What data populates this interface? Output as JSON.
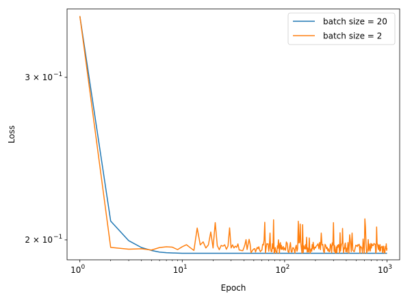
{
  "chart_data": {
    "type": "line",
    "title": "",
    "xlabel": "Epoch",
    "ylabel": "Loss",
    "xscale": "log",
    "yscale": "log",
    "xlim": [
      0.75,
      1330
    ],
    "ylim": [
      0.1903,
      0.3558
    ],
    "grid": false,
    "legend_position": "top-right",
    "x_ticks": [
      {
        "value": 1,
        "base": "10",
        "exp": "0"
      },
      {
        "value": 10,
        "base": "10",
        "exp": "1"
      },
      {
        "value": 100,
        "base": "10",
        "exp": "2"
      },
      {
        "value": 1000,
        "base": "10",
        "exp": "3"
      }
    ],
    "y_ticks": [
      {
        "value": 0.2,
        "mant": "2 × 10",
        "exp": "−1"
      },
      {
        "value": 0.3,
        "mant": "3 × 10",
        "exp": "−1"
      }
    ],
    "series": [
      {
        "name": "batch size = 20",
        "color": "#1f77b4",
        "noise": 0,
        "x": [
          1,
          2,
          3,
          4,
          5,
          6,
          7,
          8,
          9,
          10,
          15,
          20,
          30,
          50,
          100,
          200,
          500,
          1000
        ],
        "y": [
          0.3495,
          0.2096,
          0.1996,
          0.1962,
          0.1948,
          0.194,
          0.1937,
          0.1936,
          0.1935,
          0.1934,
          0.1934,
          0.1934,
          0.1934,
          0.1934,
          0.1934,
          0.1934,
          0.1934,
          0.1934
        ]
      },
      {
        "name": "batch size = 2",
        "color": "#ff7f0e",
        "noise": 0.006,
        "x": [
          1,
          2,
          3,
          4,
          5,
          6,
          7,
          8,
          9,
          10,
          11,
          12,
          13,
          14,
          15,
          16,
          17,
          18,
          19,
          20,
          30,
          50,
          100,
          200,
          400,
          1000
        ],
        "y": [
          0.3495,
          0.1963,
          0.1954,
          0.1956,
          0.195,
          0.1962,
          0.1966,
          0.1964,
          0.1952,
          0.1966,
          0.1976,
          0.1961,
          0.1948,
          0.206,
          0.1975,
          0.199,
          0.196,
          0.1975,
          0.204,
          0.196,
          0.196,
          0.1955,
          0.196,
          0.196,
          0.196,
          0.196
        ]
      }
    ]
  }
}
